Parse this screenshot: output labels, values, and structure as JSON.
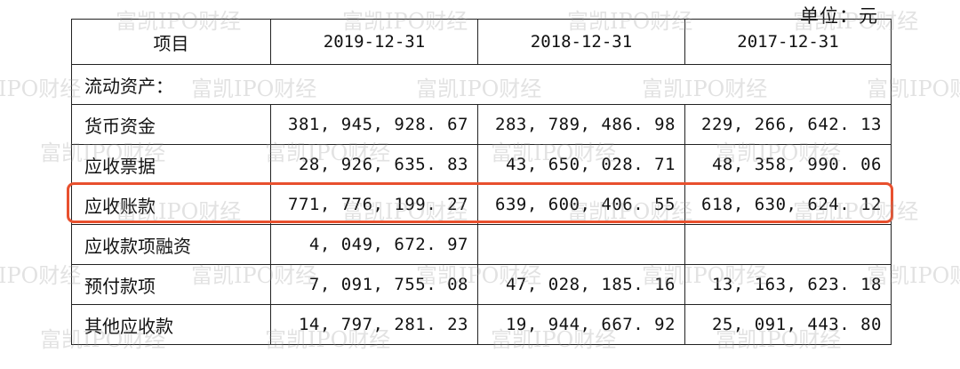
{
  "unit_label": "单位：元",
  "watermark_text": "富凯IPO财经",
  "colors": {
    "highlight": "#e8502e",
    "border": "#222222",
    "watermark": "#969696"
  },
  "table": {
    "headers": [
      "项目",
      "2019-12-31",
      "2018-12-31",
      "2017-12-31"
    ],
    "section_label": "流动资产：",
    "rows": [
      {
        "item": "货币资金",
        "v2019": "381, 945, 928. 67",
        "v2018": "283, 789, 486. 98",
        "v2017": "229, 266, 642. 13"
      },
      {
        "item": "应收票据",
        "v2019": "28, 926, 635. 83",
        "v2018": "43, 650, 028. 71",
        "v2017": "48, 358, 990. 06"
      },
      {
        "item": "应收账款",
        "v2019": "771, 776, 199. 27",
        "v2018": "639, 600, 406. 55",
        "v2017": "618, 630, 624. 12"
      },
      {
        "item": "应收款项融资",
        "v2019": "4, 049, 672. 97",
        "v2018": "",
        "v2017": ""
      },
      {
        "item": "预付款项",
        "v2019": "7, 091, 755. 08",
        "v2018": "47, 028, 185. 16",
        "v2017": "13, 163, 623. 18"
      },
      {
        "item": "其他应收款",
        "v2019": "14, 797, 281. 23",
        "v2018": "19, 944, 667. 92",
        "v2017": "25, 091, 443. 80"
      }
    ]
  }
}
